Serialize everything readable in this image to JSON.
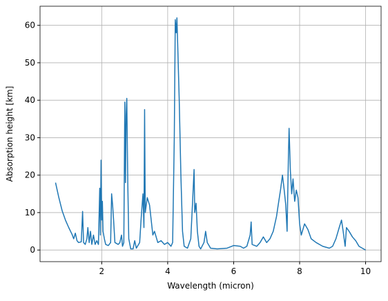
{
  "chart_data": {
    "type": "line",
    "xlabel": "Wavelength (micron)",
    "ylabel": "Absorption height [km]",
    "xlim": [
      0.13,
      10.47
    ],
    "ylim": [
      -3.1,
      65.1
    ],
    "xticks": [
      2,
      4,
      6,
      8,
      10
    ],
    "yticks": [
      0,
      10,
      20,
      30,
      40,
      50,
      60
    ],
    "grid": true,
    "x": [
      0.6,
      0.7,
      0.8,
      0.9,
      1.0,
      1.1,
      1.15,
      1.2,
      1.25,
      1.3,
      1.38,
      1.42,
      1.45,
      1.5,
      1.55,
      1.58,
      1.62,
      1.66,
      1.7,
      1.75,
      1.8,
      1.85,
      1.9,
      1.94,
      1.96,
      1.98,
      2.0,
      2.02,
      2.04,
      2.08,
      2.12,
      2.2,
      2.27,
      2.3,
      2.33,
      2.36,
      2.4,
      2.5,
      2.55,
      2.6,
      2.63,
      2.67,
      2.7,
      2.72,
      2.74,
      2.76,
      2.79,
      2.82,
      2.88,
      2.95,
      3.0,
      3.05,
      3.15,
      3.2,
      3.25,
      3.28,
      3.3,
      3.32,
      3.38,
      3.45,
      3.5,
      3.55,
      3.6,
      3.7,
      3.8,
      3.9,
      4.0,
      4.1,
      4.15,
      4.2,
      4.23,
      4.26,
      4.28,
      4.3,
      4.35,
      4.4,
      4.45,
      4.5,
      4.6,
      4.7,
      4.75,
      4.8,
      4.82,
      4.86,
      4.9,
      4.95,
      5.0,
      5.1,
      5.15,
      5.2,
      5.3,
      5.5,
      5.8,
      6.0,
      6.2,
      6.3,
      6.4,
      6.5,
      6.53,
      6.56,
      6.7,
      6.8,
      6.9,
      7.0,
      7.1,
      7.2,
      7.3,
      7.35,
      7.42,
      7.48,
      7.52,
      7.58,
      7.62,
      7.66,
      7.68,
      7.72,
      7.76,
      7.8,
      7.85,
      7.9,
      7.95,
      8.0,
      8.05,
      8.15,
      8.25,
      8.35,
      8.5,
      8.7,
      8.9,
      9.0,
      9.1,
      9.2,
      9.27,
      9.32,
      9.38,
      9.42,
      9.5,
      9.6,
      9.7,
      9.8,
      9.9,
      10.0
    ],
    "series": [
      {
        "color": "#1f77b4",
        "values": [
          18,
          14,
          10.5,
          8,
          6,
          4.2,
          3,
          4.5,
          2.5,
          2,
          2.2,
          10.3,
          2,
          1.5,
          3,
          6,
          2,
          5,
          1.5,
          4,
          1.5,
          2.5,
          1.5,
          16.5,
          4,
          24,
          8,
          13,
          5,
          3,
          1.5,
          1.2,
          2,
          15,
          12,
          8,
          2,
          1.5,
          2,
          4,
          1,
          2,
          39.5,
          18,
          36,
          40.5,
          18,
          3,
          0.3,
          0.3,
          2.5,
          0.5,
          2,
          9,
          15,
          6,
          37.5,
          10,
          14,
          12,
          8,
          4,
          5,
          2,
          2.5,
          1.5,
          2,
          1,
          2,
          30,
          61.5,
          58,
          62,
          56,
          40,
          20,
          5,
          1,
          0.5,
          3,
          12,
          21.5,
          10,
          12.5,
          5,
          1,
          0.3,
          2,
          5,
          2,
          0.5,
          0.3,
          0.5,
          1.2,
          1,
          0.5,
          1,
          4,
          7.5,
          1.5,
          1,
          2,
          3.5,
          2,
          3,
          5,
          9,
          12,
          16,
          20,
          17,
          12,
          5,
          25,
          32.5,
          21,
          15,
          19,
          13,
          16,
          14,
          7,
          4,
          7,
          5.5,
          3,
          2,
          1,
          0.5,
          1,
          3,
          6,
          8,
          5,
          1,
          6,
          5,
          3.5,
          2.5,
          1,
          0.5,
          0
        ]
      }
    ]
  }
}
